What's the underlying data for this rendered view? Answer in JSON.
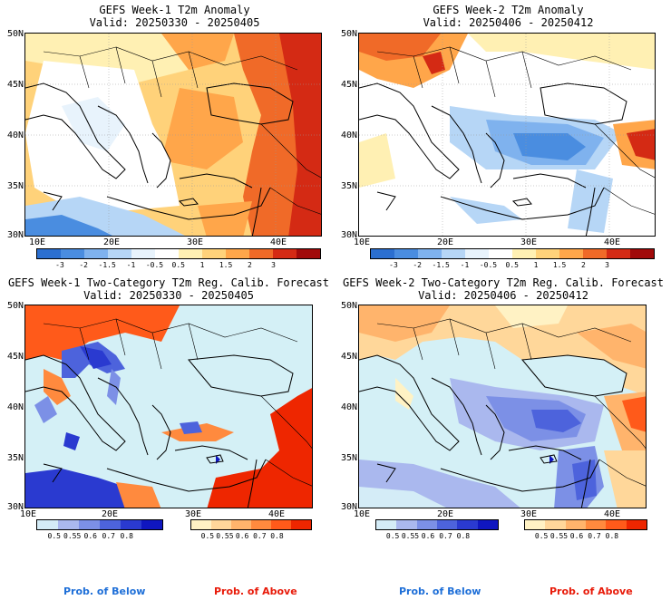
{
  "panels": [
    {
      "title": "GEFS Week-1 T2m Anomaly",
      "valid": "Valid: 20250330 - 20250405"
    },
    {
      "title": "GEFS Week-2 T2m Anomaly",
      "valid": "Valid: 20250406 - 20250412"
    },
    {
      "title": "GEFS Week-1 Two-Category T2m Reg. Calib. Forecast",
      "valid": "Valid: 20250330 - 20250405"
    },
    {
      "title": "GEFS Week-2 Two-Category T2m Reg. Calib. Forecast",
      "valid": "Valid: 20250406 - 20250412"
    }
  ],
  "axes": {
    "lat_labels": [
      "50N",
      "45N",
      "40N",
      "35N",
      "30N"
    ],
    "lon_labels": [
      "10E",
      "20E",
      "30E",
      "40E"
    ]
  },
  "anomaly_colorbar": {
    "labels": [
      "-3",
      "-2",
      "-1.5",
      "-1",
      "-0.5",
      "0.5",
      "1",
      "1.5",
      "2",
      "3"
    ],
    "colors": [
      "#2b6fd0",
      "#4a8de0",
      "#7fb2ee",
      "#b6d6f6",
      "#e8f3fc",
      "#ffffff",
      "#fff0b3",
      "#ffd27a",
      "#ffa64a",
      "#f06a28",
      "#d42a14",
      "#a10a0a"
    ]
  },
  "below_colorbar": {
    "labels": [
      "0.5",
      "0.55",
      "0.6",
      "0.7",
      "0.8"
    ],
    "colors": [
      "#d4ecf7",
      "#aab8ee",
      "#7c90e6",
      "#4d63dc",
      "#2a3ad0",
      "#0f16c0"
    ]
  },
  "above_colorbar": {
    "labels": [
      "0.5",
      "0.55",
      "0.6",
      "0.7",
      "0.8"
    ],
    "colors": [
      "#fff2c4",
      "#ffd79a",
      "#ffb46c",
      "#ff8a3e",
      "#ff5a1a",
      "#ee2600"
    ]
  },
  "footer": {
    "below": "Prob. of Below",
    "above": "Prob. of Above"
  },
  "colors": {
    "below_text": "#1e6fd8",
    "above_text": "#e81b0a",
    "sea_light": "#d4f0f6",
    "land_white": "#ffffff"
  }
}
